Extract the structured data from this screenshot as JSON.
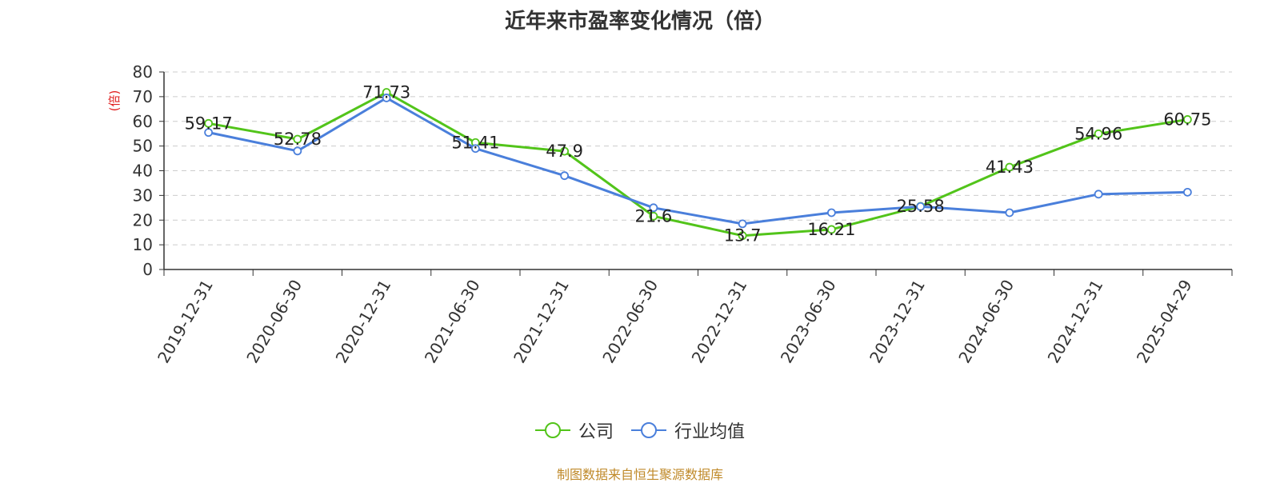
{
  "colors": {
    "company": "#52c41a",
    "industry": "#4a7fdb",
    "axis_unit": "#e02020",
    "source": "#c08a2a"
  },
  "chart_data": {
    "type": "line",
    "title": "近年来市盈率变化情况（倍）",
    "ylabel": "(倍)",
    "ylim": [
      0,
      80
    ],
    "yticks": [
      0,
      10,
      20,
      30,
      40,
      50,
      60,
      70,
      80
    ],
    "categories": [
      "2019-12-31",
      "2020-06-30",
      "2020-12-31",
      "2021-06-30",
      "2021-12-31",
      "2022-06-30",
      "2022-12-31",
      "2023-06-30",
      "2023-12-31",
      "2024-06-30",
      "2024-12-31",
      "2025-04-29"
    ],
    "series": [
      {
        "name": "公司",
        "values": [
          59.17,
          52.78,
          71.73,
          51.41,
          47.9,
          21.6,
          13.7,
          16.21,
          25.58,
          41.43,
          54.96,
          60.75
        ],
        "show_labels": true
      },
      {
        "name": "行业均值",
        "values": [
          55.5,
          48.0,
          69.5,
          49.0,
          38.0,
          25.0,
          18.5,
          23.0,
          25.5,
          23.0,
          30.5,
          31.3
        ],
        "show_labels": false
      }
    ],
    "grid": true,
    "legend_position": "bottom"
  },
  "source_text": "制图数据来自恒生聚源数据库"
}
